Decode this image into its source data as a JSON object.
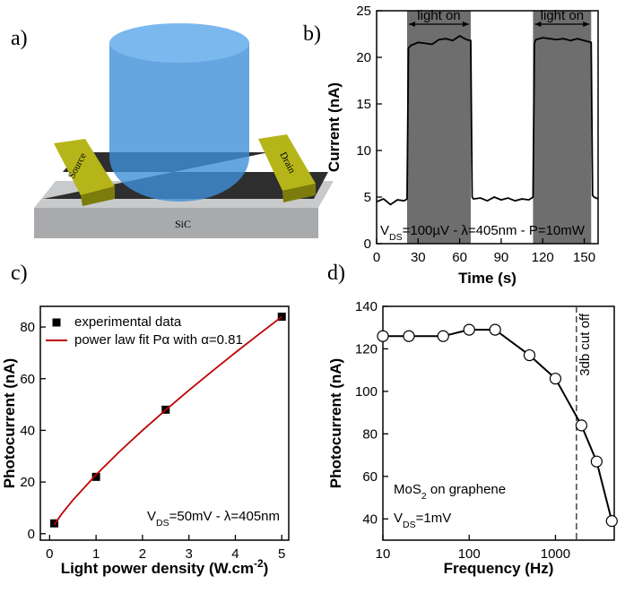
{
  "illustration": {
    "panel_label": "a)",
    "source": "Source",
    "drain": "Drain",
    "substrate": "SiC"
  },
  "chart_data": [
    {
      "type": "line",
      "panel_label": "b)",
      "xlabel": "Time (s)",
      "ylabel": "Current (nA)",
      "xlim": [
        0,
        160
      ],
      "ylim": [
        0,
        25
      ],
      "xticks": [
        0,
        30,
        60,
        90,
        120,
        150
      ],
      "yticks": [
        0,
        5,
        10,
        15,
        20,
        25
      ],
      "regions": [
        {
          "x": [
            22,
            68
          ],
          "label": "light on"
        },
        {
          "x": [
            113,
            155
          ],
          "label": "light on"
        }
      ],
      "region_color": "#6e6e6e",
      "annotation": [
        {
          "t": "V"
        },
        {
          "t": "DS",
          "sub": true
        },
        {
          "t": "=100µV - λ=405nm - P=10mW"
        }
      ],
      "series": [
        {
          "color": "#000000",
          "style": "line",
          "x": [
            0,
            5,
            10,
            15,
            20,
            22,
            23,
            25,
            30,
            35,
            40,
            45,
            50,
            55,
            60,
            65,
            68,
            69,
            70,
            75,
            80,
            85,
            90,
            95,
            100,
            105,
            110,
            113,
            114,
            115,
            120,
            125,
            130,
            135,
            140,
            145,
            150,
            155,
            156,
            157,
            160
          ],
          "values": [
            4.5,
            4.8,
            4.2,
            4.7,
            4.6,
            4.8,
            21.0,
            21.3,
            21.6,
            21.5,
            21.4,
            21.9,
            22.0,
            21.8,
            22.3,
            21.9,
            21.8,
            5.0,
            4.8,
            4.9,
            4.6,
            5.0,
            4.7,
            4.9,
            4.6,
            4.8,
            4.7,
            5.0,
            21.5,
            21.9,
            22.1,
            22.0,
            21.9,
            22.0,
            21.8,
            22.0,
            21.8,
            21.6,
            5.2,
            5.0,
            4.8
          ]
        }
      ]
    },
    {
      "type": "scatter",
      "panel_label": "c)",
      "xlabel": [
        {
          "t": "Light power density (W.cm"
        },
        {
          "t": "-2",
          "sup": true
        },
        {
          "t": ")"
        }
      ],
      "ylabel": "Photocurrent (nA)",
      "xlim": [
        -0.2,
        5.15
      ],
      "ylim": [
        -2.5,
        88
      ],
      "xticks": [
        0,
        1,
        2,
        3,
        4,
        5
      ],
      "yticks": [
        0,
        20,
        40,
        60,
        80
      ],
      "legend": "upper left",
      "annotation": [
        {
          "t": "V"
        },
        {
          "t": "DS",
          "sub": true
        },
        {
          "t": "=50mV - λ=405nm"
        }
      ],
      "series": [
        {
          "name": "experimental data",
          "color": "#000000",
          "style": "markers",
          "marker": "square",
          "x": [
            0.1,
            1,
            2.5,
            5
          ],
          "values": [
            4,
            22,
            48,
            84
          ]
        },
        {
          "name": "power law fit Pα with α=0.81",
          "color": "#c00000",
          "style": "line",
          "x": [
            0.1,
            0.25,
            0.5,
            1,
            1.5,
            2,
            2.5,
            3,
            3.5,
            4,
            4.5,
            5
          ],
          "values": [
            3.5,
            7.4,
            13.0,
            22.8,
            31.7,
            40.0,
            47.9,
            55.5,
            62.9,
            70.1,
            77.1,
            84.0
          ]
        }
      ]
    },
    {
      "type": "line",
      "panel_label": "d)",
      "xlabel": "Frequency (Hz)",
      "ylabel": "Photocurrent (nA)",
      "xlog": true,
      "xlim": [
        10,
        4800
      ],
      "ylim": [
        30,
        140
      ],
      "xticks": [
        10,
        100,
        1000
      ],
      "yticks": [
        40,
        60,
        80,
        100,
        120,
        140
      ],
      "vlines": [
        {
          "x": 1750,
          "label": "3db cut off"
        }
      ],
      "annotations": [
        [
          {
            "t": "MoS"
          },
          {
            "t": "2",
            "sub": true
          },
          {
            "t": " on graphene"
          }
        ],
        [
          {
            "t": "V"
          },
          {
            "t": "DS",
            "sub": true
          },
          {
            "t": "=1mV"
          }
        ]
      ],
      "series": [
        {
          "color": "#000000",
          "style": "line+markers",
          "marker": "circle",
          "x": [
            10,
            20,
            50,
            100,
            200,
            500,
            1000,
            2000,
            3000,
            4500
          ],
          "values": [
            126,
            126,
            126,
            129,
            129,
            117,
            106,
            84,
            67,
            39
          ]
        }
      ]
    }
  ]
}
